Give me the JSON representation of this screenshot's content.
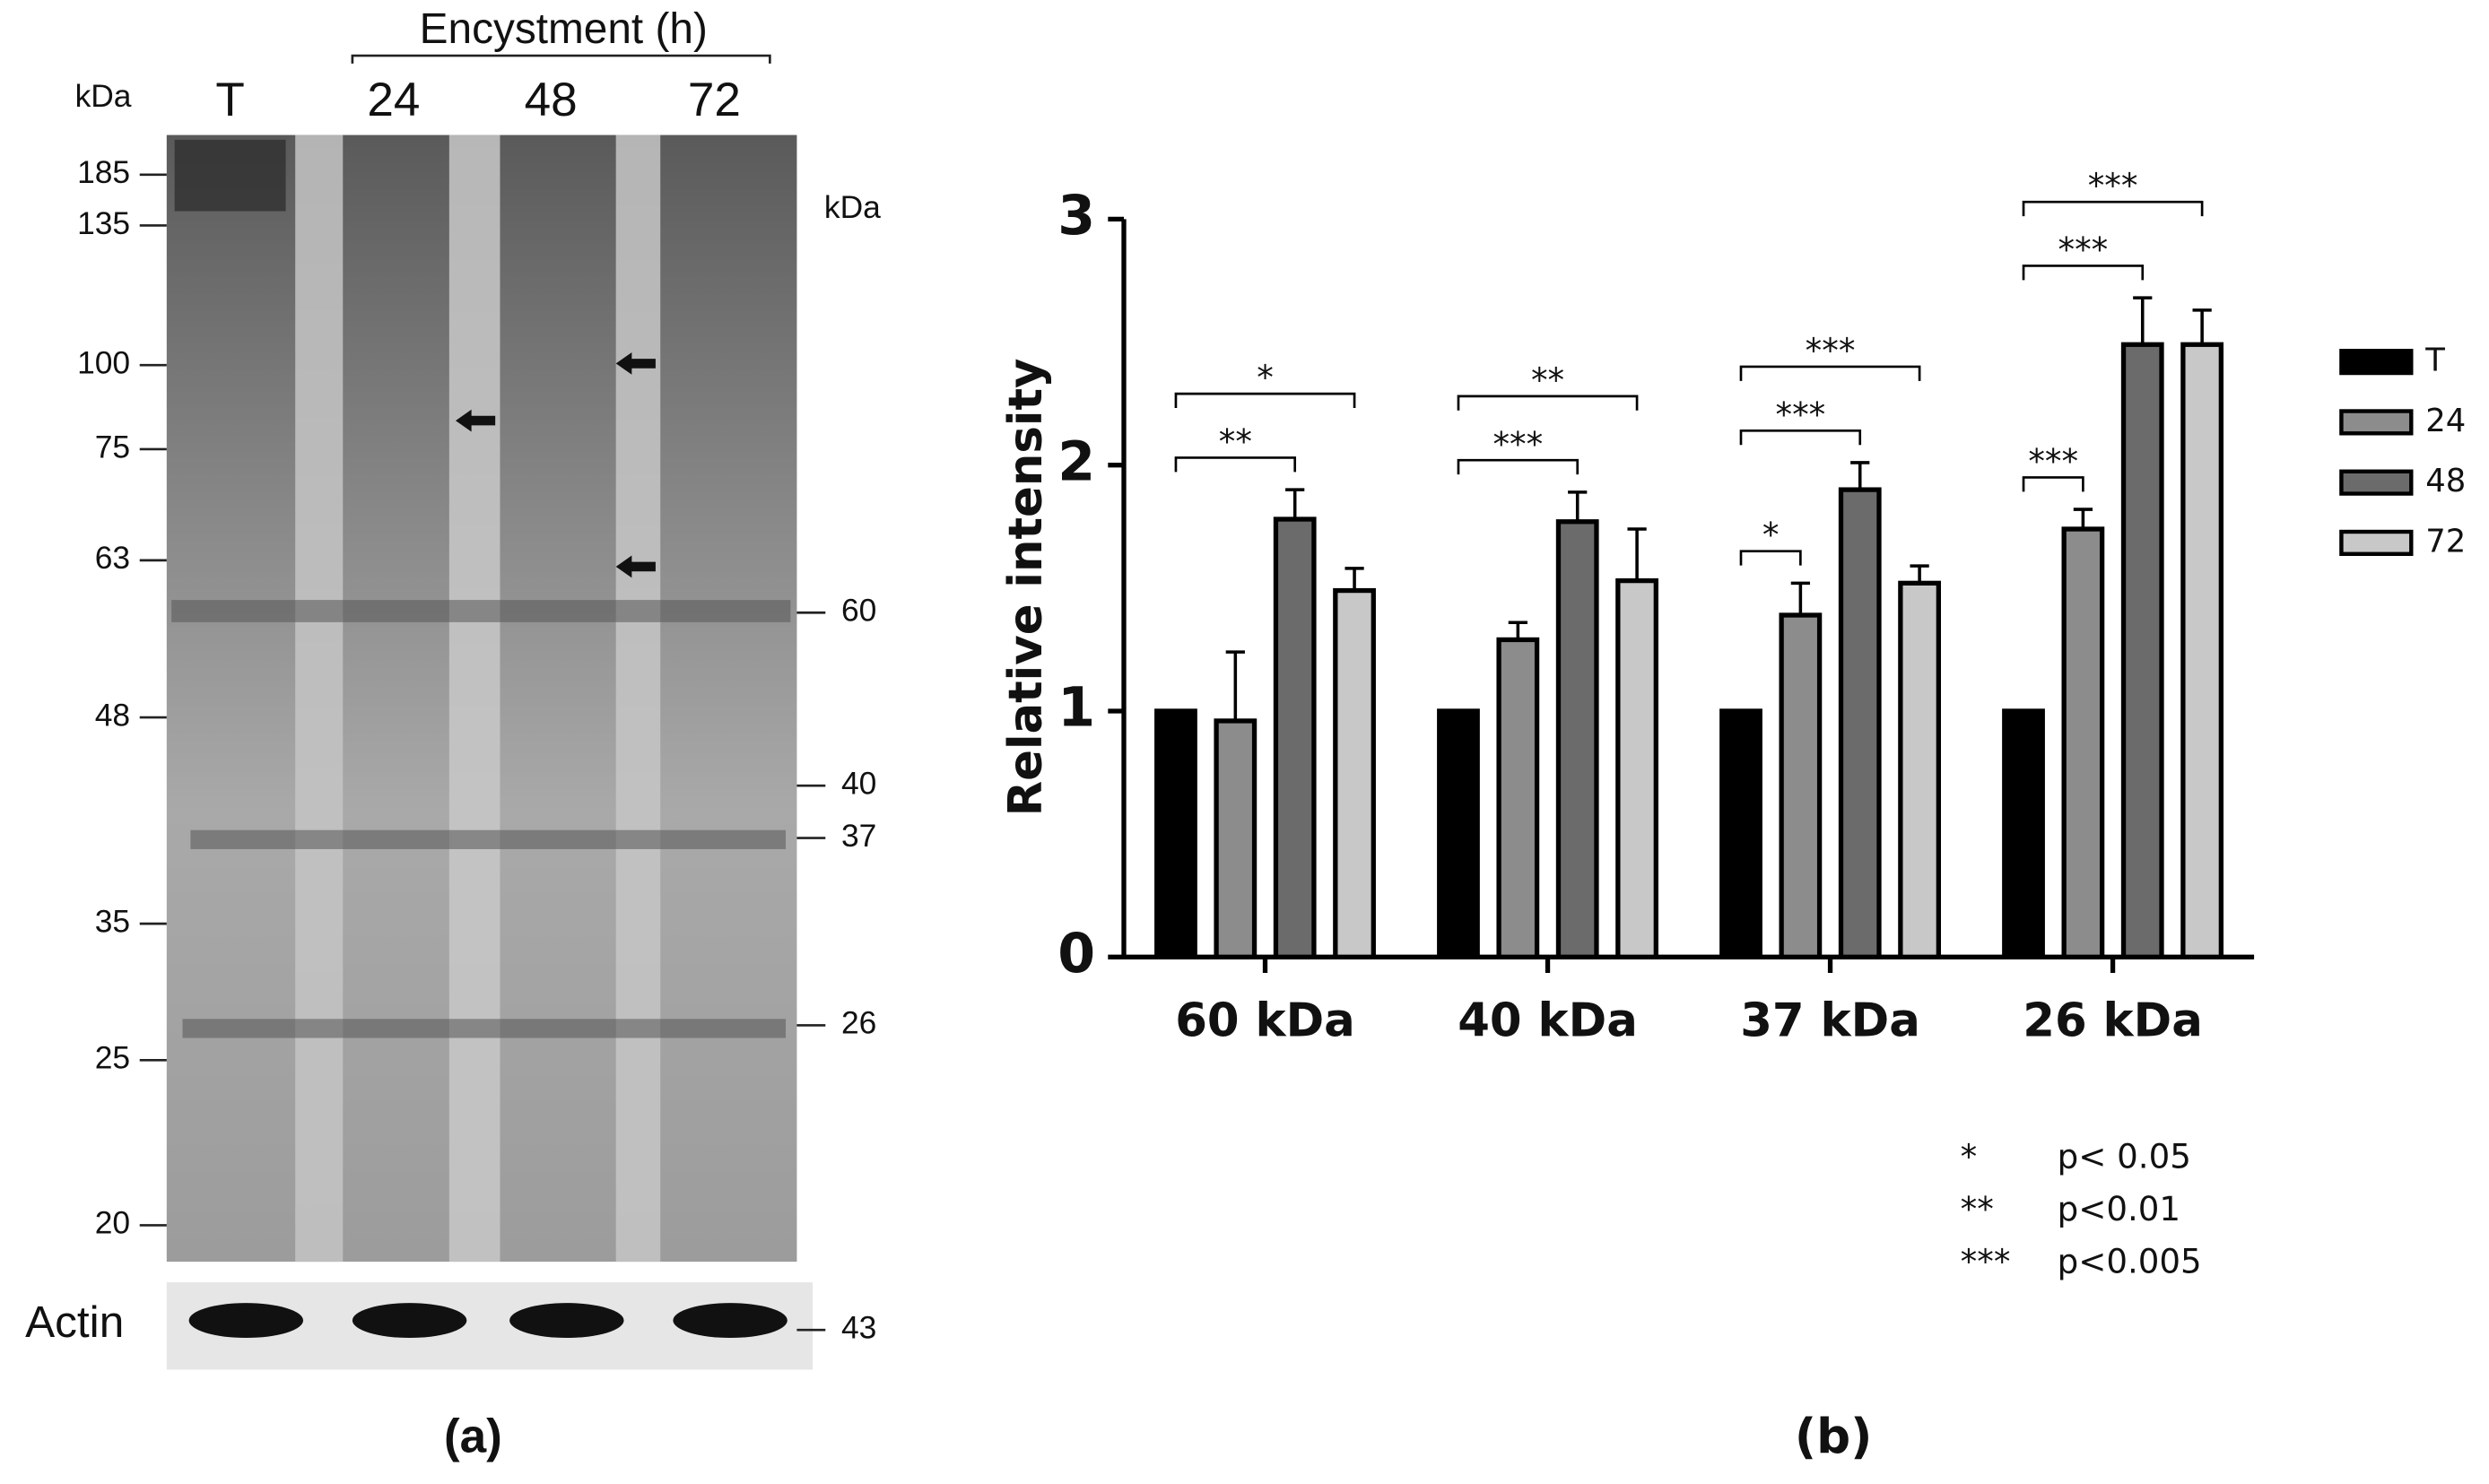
{
  "panel_a": {
    "label": "(a)",
    "heading": "Encystment (h)",
    "unit_left": "kDa",
    "unit_right": "kDa",
    "lanes": [
      "T",
      "24",
      "48",
      "72"
    ],
    "markers_left": [
      "185",
      "135",
      "100",
      "75",
      "63",
      "48",
      "35",
      "25",
      "20"
    ],
    "markers_right": [
      "60",
      "40",
      "37",
      "26"
    ],
    "loading_control": "Actin",
    "loading_control_marker": "43"
  },
  "panel_b_label": "(b)",
  "significance_legend": [
    {
      "symbol": "*",
      "text": "p< 0.05"
    },
    {
      "symbol": "**",
      "text": "p<0.01"
    },
    {
      "symbol": "***",
      "text": "p<0.005"
    }
  ],
  "chart_data": {
    "type": "bar",
    "y_label": "Relative intensity",
    "categories": [
      "60 kDa",
      "40 kDa",
      "37 kDa",
      "26 kDa"
    ],
    "series": [
      {
        "name": "T",
        "color": "#000000",
        "values": [
          1,
          1,
          1,
          1
        ],
        "errors": [
          0,
          0,
          0,
          0
        ]
      },
      {
        "name": "24",
        "color": "#8c8c8c",
        "values": [
          0.96,
          1.29,
          1.39,
          1.74
        ],
        "errors": [
          0.28,
          0.07,
          0.13,
          0.08
        ]
      },
      {
        "name": "48",
        "color": "#6b6b6b",
        "values": [
          1.78,
          1.77,
          1.9,
          2.49
        ],
        "errors": [
          0.12,
          0.12,
          0.11,
          0.19
        ]
      },
      {
        "name": "72",
        "color": "#c8c8c8",
        "values": [
          1.49,
          1.53,
          1.52,
          2.49
        ],
        "errors": [
          0.09,
          0.21,
          0.07,
          0.14
        ]
      }
    ],
    "ylim": [
      0,
      3
    ],
    "yticks": [
      0,
      1,
      2,
      3
    ],
    "annotations": [
      {
        "category": "60 kDa",
        "compare": [
          "T",
          "48"
        ],
        "label": "**"
      },
      {
        "category": "60 kDa",
        "compare": [
          "T",
          "72"
        ],
        "label": "*"
      },
      {
        "category": "40 kDa",
        "compare": [
          "T",
          "48"
        ],
        "label": "***"
      },
      {
        "category": "40 kDa",
        "compare": [
          "T",
          "72"
        ],
        "label": "**"
      },
      {
        "category": "37 kDa",
        "compare": [
          "T",
          "24"
        ],
        "label": "*"
      },
      {
        "category": "37 kDa",
        "compare": [
          "T",
          "48"
        ],
        "label": "***"
      },
      {
        "category": "37 kDa",
        "compare": [
          "T",
          "72"
        ],
        "label": "***"
      },
      {
        "category": "26 kDa",
        "compare": [
          "T",
          "24"
        ],
        "label": "***"
      },
      {
        "category": "26 kDa",
        "compare": [
          "T",
          "48"
        ],
        "label": "***"
      },
      {
        "category": "26 kDa",
        "compare": [
          "T",
          "72"
        ],
        "label": "***"
      }
    ]
  }
}
